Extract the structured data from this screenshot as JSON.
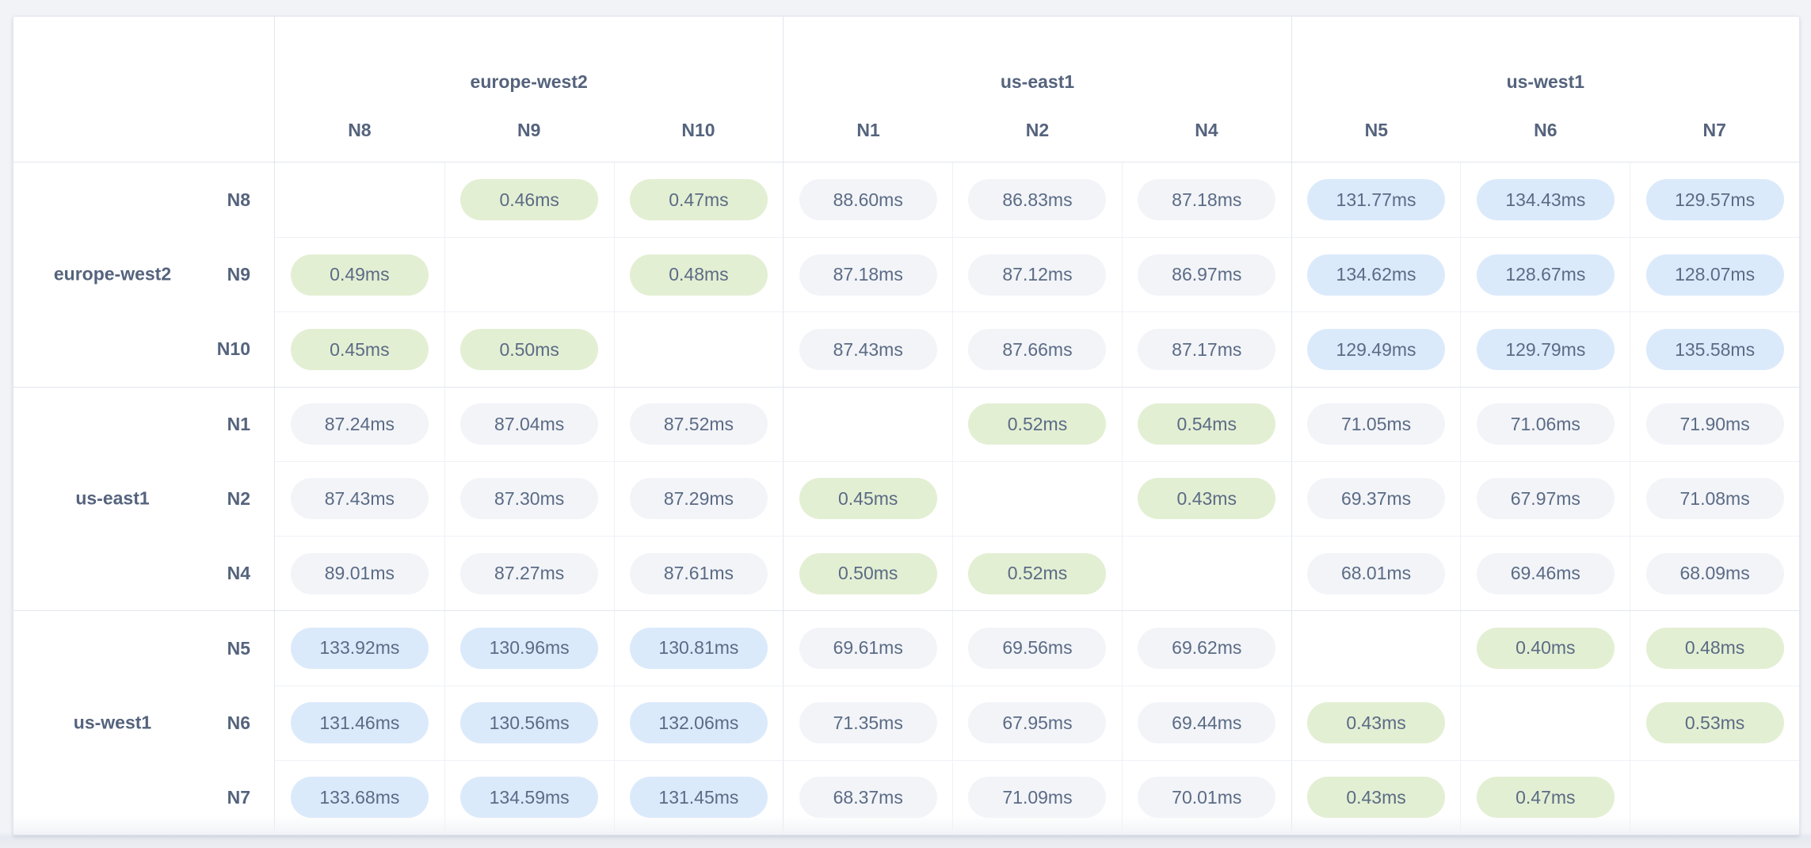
{
  "theme": {
    "page_bg": "#f1f3f7",
    "card_bg": "#ffffff",
    "border_strong": "#e2e6ee",
    "border_light": "#eef1f6",
    "header_text": "#55637d",
    "value_text": "#5b6b85",
    "fast_bg": "#e3efd3",
    "medium_bg": "#f2f4f8",
    "slow_bg": "#dbeafb"
  },
  "table": {
    "unit": "ms",
    "column_groups": [
      {
        "region": "europe-west2",
        "nodes": [
          "N8",
          "N9",
          "N10"
        ]
      },
      {
        "region": "us-east1",
        "nodes": [
          "N1",
          "N2",
          "N4"
        ]
      },
      {
        "region": "us-west1",
        "nodes": [
          "N5",
          "N6",
          "N7"
        ]
      }
    ],
    "row_groups": [
      {
        "region": "europe-west2",
        "nodes": [
          "N8",
          "N9",
          "N10"
        ]
      },
      {
        "region": "us-east1",
        "nodes": [
          "N1",
          "N2",
          "N4"
        ]
      },
      {
        "region": "us-west1",
        "nodes": [
          "N5",
          "N6",
          "N7"
        ]
      }
    ],
    "cells": [
      [
        "",
        "0.46ms",
        "0.47ms",
        "88.60ms",
        "86.83ms",
        "87.18ms",
        "131.77ms",
        "134.43ms",
        "129.57ms"
      ],
      [
        "0.49ms",
        "",
        "0.48ms",
        "87.18ms",
        "87.12ms",
        "86.97ms",
        "134.62ms",
        "128.67ms",
        "128.07ms"
      ],
      [
        "0.45ms",
        "0.50ms",
        "",
        "87.43ms",
        "87.66ms",
        "87.17ms",
        "129.49ms",
        "129.79ms",
        "135.58ms"
      ],
      [
        "87.24ms",
        "87.04ms",
        "87.52ms",
        "",
        "0.52ms",
        "0.54ms",
        "71.05ms",
        "71.06ms",
        "71.90ms"
      ],
      [
        "87.43ms",
        "87.30ms",
        "87.29ms",
        "0.45ms",
        "",
        "0.43ms",
        "69.37ms",
        "67.97ms",
        "71.08ms"
      ],
      [
        "89.01ms",
        "87.27ms",
        "87.61ms",
        "0.50ms",
        "0.52ms",
        "",
        "68.01ms",
        "69.46ms",
        "68.09ms"
      ],
      [
        "133.92ms",
        "130.96ms",
        "130.81ms",
        "69.61ms",
        "69.56ms",
        "69.62ms",
        "",
        "0.40ms",
        "0.48ms"
      ],
      [
        "131.46ms",
        "130.56ms",
        "132.06ms",
        "71.35ms",
        "67.95ms",
        "69.44ms",
        "0.43ms",
        "",
        "0.53ms"
      ],
      [
        "133.68ms",
        "134.59ms",
        "131.45ms",
        "68.37ms",
        "71.09ms",
        "70.01ms",
        "0.43ms",
        "0.47ms",
        ""
      ]
    ]
  },
  "chart_data": {
    "type": "heatmap",
    "unit": "ms",
    "row_labels": [
      "europe-west2 N8",
      "europe-west2 N9",
      "europe-west2 N10",
      "us-east1 N1",
      "us-east1 N2",
      "us-east1 N4",
      "us-west1 N5",
      "us-west1 N6",
      "us-west1 N7"
    ],
    "column_labels": [
      "europe-west2 N8",
      "europe-west2 N9",
      "europe-west2 N10",
      "us-east1 N1",
      "us-east1 N2",
      "us-east1 N4",
      "us-west1 N5",
      "us-west1 N6",
      "us-west1 N7"
    ],
    "values": [
      [
        null,
        0.46,
        0.47,
        88.6,
        86.83,
        87.18,
        131.77,
        134.43,
        129.57
      ],
      [
        0.49,
        null,
        0.48,
        87.18,
        87.12,
        86.97,
        134.62,
        128.67,
        128.07
      ],
      [
        0.45,
        0.5,
        null,
        87.43,
        87.66,
        87.17,
        129.49,
        129.79,
        135.58
      ],
      [
        87.24,
        87.04,
        87.52,
        null,
        0.52,
        0.54,
        71.05,
        71.06,
        71.9
      ],
      [
        87.43,
        87.3,
        87.29,
        0.45,
        null,
        0.43,
        69.37,
        67.97,
        71.08
      ],
      [
        89.01,
        87.27,
        87.61,
        0.5,
        0.52,
        null,
        68.01,
        69.46,
        68.09
      ],
      [
        133.92,
        130.96,
        130.81,
        69.61,
        69.56,
        69.62,
        null,
        0.4,
        0.48
      ],
      [
        131.46,
        130.56,
        132.06,
        71.35,
        67.95,
        69.44,
        0.43,
        null,
        0.53
      ],
      [
        133.68,
        134.59,
        131.45,
        68.37,
        71.09,
        70.01,
        0.43,
        0.47,
        null
      ]
    ],
    "color_tiers": [
      {
        "condition": "value < 1ms",
        "color": "#e3efd3"
      },
      {
        "condition": "1ms <= value < 100ms",
        "color": "#f2f4f8"
      },
      {
        "condition": "value >= 100ms",
        "color": "#dbeafb"
      }
    ],
    "layout": {
      "diagonal": "empty",
      "row_groups_by_region": true,
      "column_groups_by_region": true
    }
  }
}
